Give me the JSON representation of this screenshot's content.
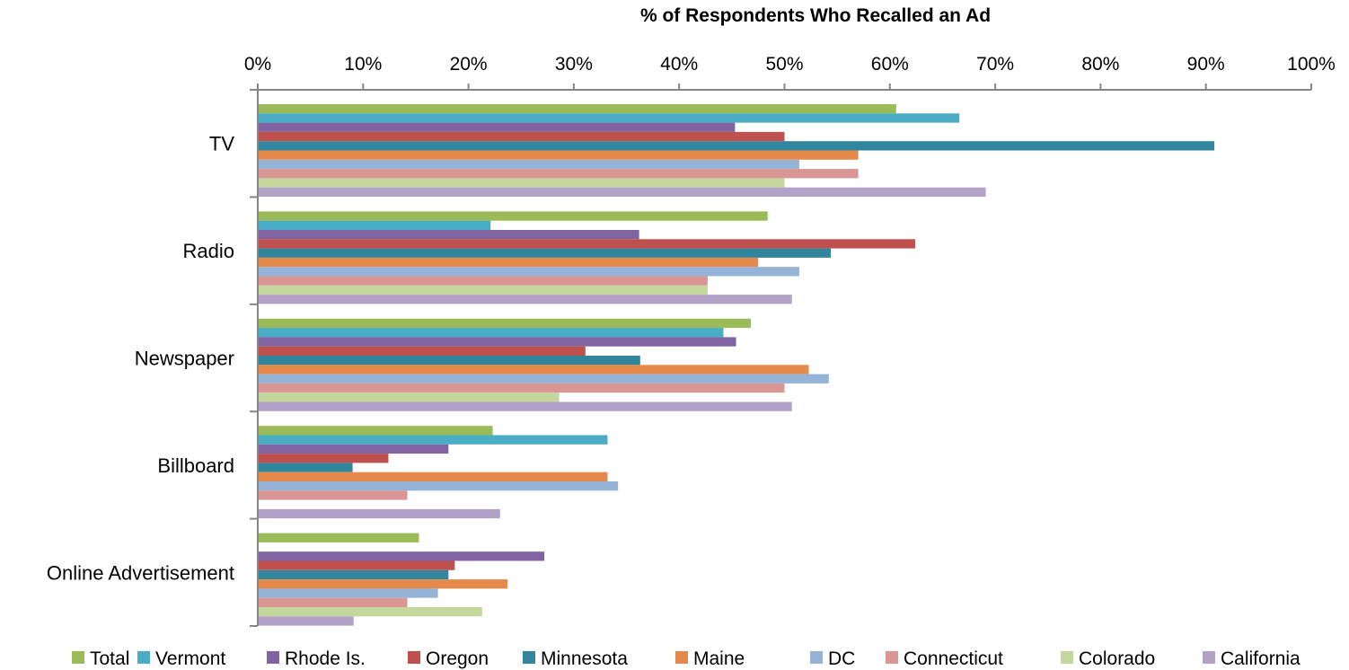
{
  "chart_data": {
    "type": "bar",
    "orientation": "horizontal",
    "title": "% of Respondents Who Recalled an Ad",
    "x_axis_position": "top",
    "xlim": [
      0,
      100
    ],
    "x_ticks": [
      "0%",
      "10%",
      "20%",
      "30%",
      "40%",
      "50%",
      "60%",
      "70%",
      "80%",
      "90%",
      "100%"
    ],
    "categories": [
      "TV",
      "Radio",
      "Newspaper",
      "Billboard",
      "Online Advertisement"
    ],
    "legend_position": "bottom",
    "grid": false,
    "series": [
      {
        "name": "Total",
        "color": "#9bbb59",
        "values": [
          60.6,
          48.4,
          46.8,
          22.3,
          15.3
        ]
      },
      {
        "name": "Vermont",
        "color": "#4bacc6",
        "values": [
          66.6,
          22.1,
          44.2,
          33.2,
          0
        ]
      },
      {
        "name": "Rhode Is.",
        "color": "#8064a2",
        "values": [
          45.3,
          36.2,
          45.4,
          18.1,
          27.2
        ]
      },
      {
        "name": "Oregon",
        "color": "#c0504d",
        "values": [
          50.0,
          62.4,
          31.1,
          12.4,
          18.7
        ]
      },
      {
        "name": "Minnesota",
        "color": "#31859c",
        "values": [
          90.8,
          54.4,
          36.3,
          9.0,
          18.1
        ]
      },
      {
        "name": "Maine",
        "color": "#e58a4a",
        "values": [
          57.0,
          47.5,
          52.3,
          33.2,
          23.7
        ]
      },
      {
        "name": "DC",
        "color": "#95b3d7",
        "values": [
          51.4,
          51.4,
          54.2,
          34.2,
          17.1
        ]
      },
      {
        "name": "Connecticut",
        "color": "#d99694",
        "values": [
          57.0,
          42.7,
          50.0,
          14.2,
          14.2
        ]
      },
      {
        "name": "Colorado",
        "color": "#c3d69b",
        "values": [
          50.0,
          42.7,
          28.6,
          0,
          21.3
        ]
      },
      {
        "name": "California",
        "color": "#b2a2c7",
        "values": [
          69.1,
          50.7,
          50.7,
          23.0,
          9.1
        ]
      }
    ]
  }
}
